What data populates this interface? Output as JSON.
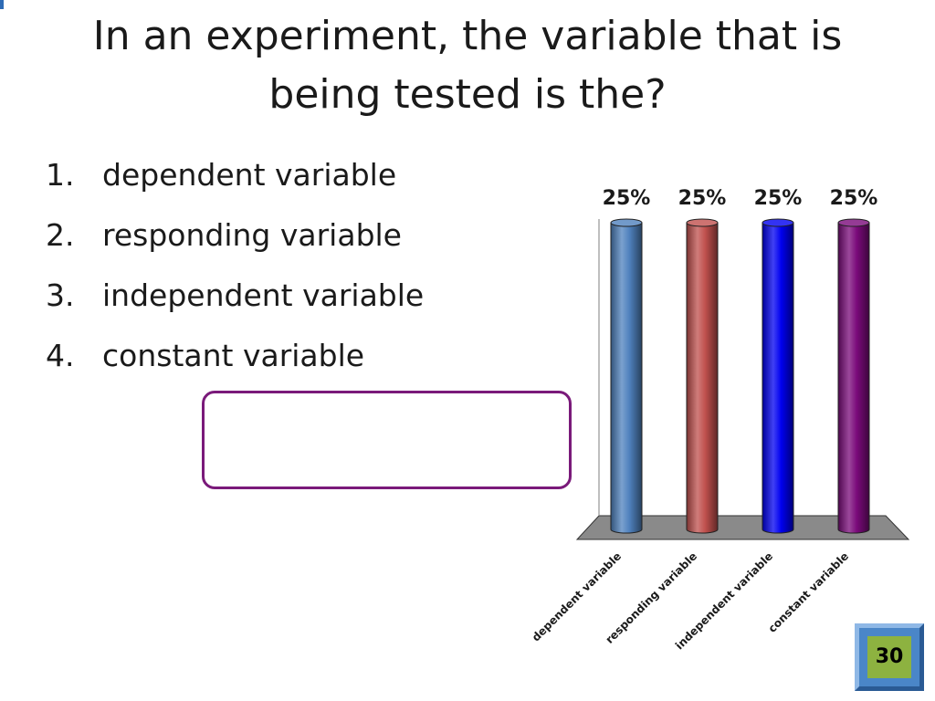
{
  "slide": {
    "title": "In an experiment, the variable that is being tested is the?"
  },
  "answers": [
    {
      "number": "1.",
      "text": "dependent variable"
    },
    {
      "number": "2.",
      "text": "responding variable"
    },
    {
      "number": "3.",
      "text": "independent variable"
    },
    {
      "number": "4.",
      "text": "constant variable"
    }
  ],
  "countdown": {
    "value": "30"
  },
  "colors": {
    "title_text": "#1a1a1a",
    "response_box_border": "#7a1a7a",
    "floor": "#8a8a8a",
    "countdown_frame": "#4a86c8",
    "countdown_face": "#8db240"
  },
  "chart_data": {
    "type": "bar",
    "style": "3d-cylinder",
    "categories": [
      "dependent variable",
      "responding variable",
      "independent variable",
      "constant variable"
    ],
    "values": [
      25,
      25,
      25,
      25
    ],
    "data_labels": [
      "25%",
      "25%",
      "25%",
      "25%"
    ],
    "colors": [
      "#4f81bd",
      "#c0504d",
      "#0000f0",
      "#7a0a7a"
    ],
    "ylim": [
      0,
      25
    ],
    "grid": false,
    "legend": "none",
    "title": "",
    "xlabel": "",
    "ylabel": ""
  }
}
